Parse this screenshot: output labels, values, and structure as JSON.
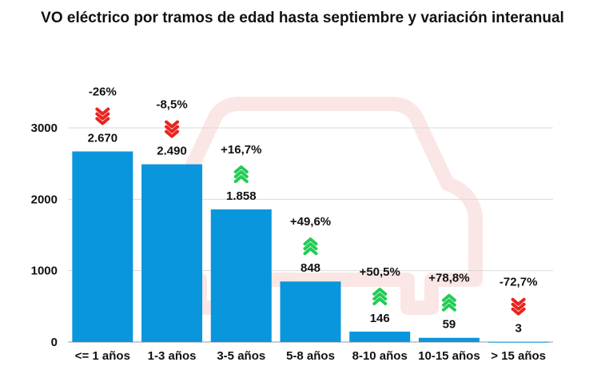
{
  "chart_data": {
    "type": "bar",
    "title": "VO eléctrico por tramos de edad hasta septiembre y variación interanual",
    "categories": [
      "<= 1 años",
      "1-3 años",
      "3-5 años",
      "5-8 años",
      "8-10 años",
      "10-15 años",
      "> 15 años"
    ],
    "values": [
      2670,
      2490,
      1858,
      848,
      146,
      59,
      3
    ],
    "value_labels": [
      "2.670",
      "2.490",
      "1.858",
      "848",
      "146",
      "59",
      "3"
    ],
    "changes": [
      "-26%",
      "-8,5%",
      "+16,7%",
      "+49,6%",
      "+50,5%",
      "+78,8%",
      "-72,7%"
    ],
    "change_direction": [
      "down",
      "down",
      "up",
      "up",
      "up",
      "up",
      "down"
    ],
    "yticks": [
      0,
      1000,
      2000,
      3000
    ],
    "ylim": [
      0,
      3000
    ],
    "grid": true,
    "colors": {
      "bar": "#0a96dc",
      "up": "#22cc55",
      "down": "#e8251f",
      "watermark": "#fbe3e3"
    }
  }
}
